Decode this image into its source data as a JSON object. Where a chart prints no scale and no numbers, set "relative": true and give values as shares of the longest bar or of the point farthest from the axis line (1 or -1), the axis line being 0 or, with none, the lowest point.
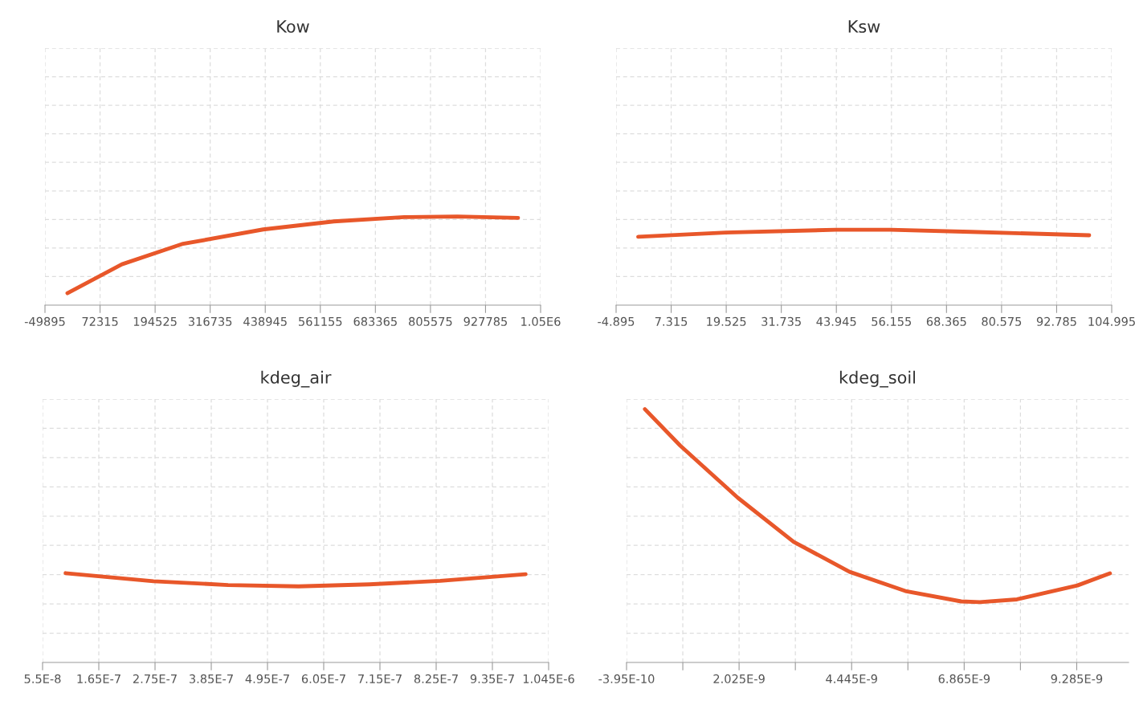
{
  "chart_data": [
    {
      "type": "line",
      "title": "Kow",
      "relative": true,
      "grid": true,
      "tick_labels": "x",
      "marker": "none",
      "line_style": "solid",
      "xlim": [
        -49895,
        1049995
      ],
      "xticks": [
        -49895,
        72315,
        194525,
        316735,
        438945,
        561155,
        683365,
        805575,
        927785,
        {
          "value": 1049995,
          "label": "1.05E6"
        }
      ],
      "series": [
        {
          "color": "#e8572a",
          "x": [
            0,
            120890,
            254060,
            434240,
            590920,
            747600,
            865110,
            1000000
          ],
          "values": [
            0.134,
            0.461,
            0.689,
            0.854,
            0.945,
            0.993,
            1,
            0.985
          ]
        }
      ]
    },
    {
      "type": "line",
      "title": "Ksw",
      "relative": true,
      "grid": true,
      "tick_labels": "x",
      "marker": "none",
      "line_style": "solid",
      "xlim": [
        -4.895,
        104.995
      ],
      "xticks": [
        -4.895,
        7.315,
        19.525,
        31.735,
        43.945,
        56.155,
        68.365,
        80.575,
        92.785,
        104.995
      ],
      "series": [
        {
          "color": "#e8572a",
          "x": [
            0,
            19.4,
            43.9,
            55.9,
            73.8,
            100
          ],
          "values": [
            0.907,
            0.963,
            1,
            1,
            0.972,
            0.927
          ]
        }
      ]
    },
    {
      "type": "line",
      "title": "kdeg_air",
      "relative": true,
      "grid": true,
      "tick_labels": "x",
      "marker": "none",
      "line_style": "solid",
      "xlim": [
        5.5e-08,
        1.045e-06
      ],
      "xticks": [
        {
          "value": 5.5e-08,
          "label": "5.5E-8"
        },
        {
          "value": 1.65e-07,
          "label": "1.65E-7"
        },
        {
          "value": 2.75e-07,
          "label": "2.75E-7"
        },
        {
          "value": 3.85e-07,
          "label": "3.85E-7"
        },
        {
          "value": 4.95e-07,
          "label": "4.95E-7"
        },
        {
          "value": 6.05e-07,
          "label": "6.05E-7"
        },
        {
          "value": 7.15e-07,
          "label": "7.15E-7"
        },
        {
          "value": 8.25e-07,
          "label": "8.25E-7"
        },
        {
          "value": 9.35e-07,
          "label": "9.35E-7"
        },
        {
          "value": 1.045e-06,
          "label": "1.045E-6"
        }
      ],
      "series": [
        {
          "color": "#e8572a",
          "x": [
            1e-07,
            2.72e-07,
            4.18e-07,
            5.56e-07,
            6.94e-07,
            8.33e-07,
            1e-06
          ],
          "values": [
            1,
            0.91,
            0.867,
            0.852,
            0.875,
            0.914,
            0.988
          ]
        }
      ]
    },
    {
      "type": "line",
      "title": "kdeg_soil",
      "relative": true,
      "grid": true,
      "tick_labels": "x",
      "marker": "none",
      "line_style": "solid",
      "xlim": [
        -3.95e-10,
        1.04e-08
      ],
      "xticks": [
        {
          "value": -3.95e-10,
          "label": "-3.95E-10"
        },
        {
          "value": 8.15e-10,
          "label": null
        },
        {
          "value": 2.025e-09,
          "label": "2.025E-9"
        },
        {
          "value": 3.235e-09,
          "label": null
        },
        {
          "value": 4.445e-09,
          "label": "4.445E-9"
        },
        {
          "value": 5.655e-09,
          "label": null
        },
        {
          "value": 6.865e-09,
          "label": "6.865E-9"
        },
        {
          "value": 8.075e-09,
          "label": null
        },
        {
          "value": 9.285e-09,
          "label": "9.285E-9"
        }
      ],
      "series": [
        {
          "color": "#e8572a",
          "x": [
            0,
            7.6e-10,
            2e-09,
            3.2e-09,
            4.4e-09,
            5.6e-09,
            6.8e-09,
            7.2e-09,
            8e-09,
            9.3e-09,
            1e-08
          ],
          "values": [
            1,
            0.856,
            0.65,
            0.476,
            0.358,
            0.282,
            0.241,
            0.238,
            0.249,
            0.304,
            0.352
          ]
        }
      ]
    }
  ]
}
